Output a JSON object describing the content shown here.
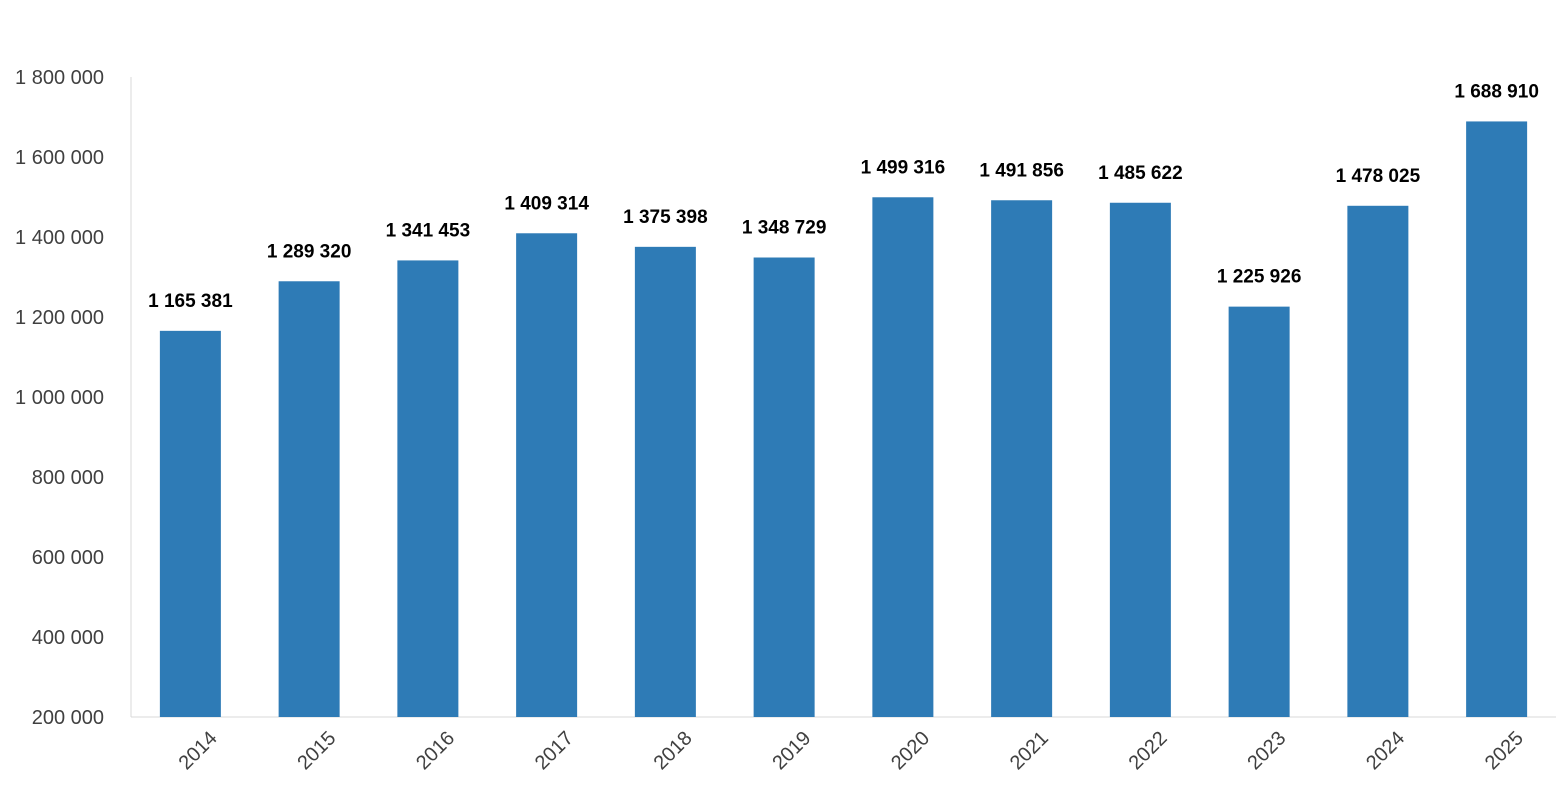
{
  "chart_data": {
    "type": "bar",
    "title": "",
    "xlabel": "",
    "ylabel": "",
    "categories": [
      "2014",
      "2015",
      "2016",
      "2017",
      "2018",
      "2019",
      "2020",
      "2021",
      "2022",
      "2023",
      "2024",
      "2025"
    ],
    "values": [
      1165381,
      1289320,
      1341453,
      1409314,
      1375398,
      1348729,
      1499316,
      1491856,
      1485622,
      1225926,
      1478025,
      1688910
    ],
    "value_labels": [
      "1 165 381",
      "1 289 320",
      "1 341 453",
      "1 409 314",
      "1 375 398",
      "1 348 729",
      "1 499 316",
      "1 491 856",
      "1 485 622",
      "1 225 926",
      "1 478 025",
      "1 688 910"
    ],
    "ylim": [
      200000,
      1800000
    ],
    "yticks": [
      200000,
      400000,
      600000,
      800000,
      1000000,
      1200000,
      1400000,
      1600000,
      1800000
    ],
    "ytick_labels": [
      "200 000",
      "400 000",
      "600 000",
      "800 000",
      "1 000 000",
      "1 200 000",
      "1 400 000",
      "1 600 000",
      "1 800 000"
    ],
    "grid": false,
    "legend": "none",
    "bar_color": "#2E7BB6",
    "axis_color": "#D9D9D9"
  }
}
